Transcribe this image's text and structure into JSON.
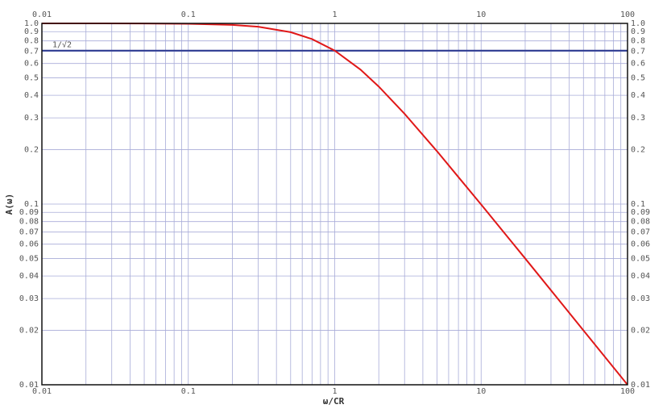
{
  "chart_data": {
    "type": "line",
    "xlabel": "ω/CR",
    "ylabel": "A(ω)",
    "xscale": "log",
    "yscale": "log",
    "grid": true,
    "x": [
      0.01,
      0.02,
      0.05,
      0.1,
      0.2,
      0.3,
      0.5,
      0.7,
      1,
      1.5,
      2,
      3,
      5,
      7,
      10,
      20,
      50,
      100
    ],
    "series": [
      {
        "name": "A(ω)",
        "color": "#e01818",
        "values": [
          1.0,
          1.0,
          0.999,
          0.995,
          0.981,
          0.958,
          0.894,
          0.819,
          0.707,
          0.555,
          0.447,
          0.316,
          0.196,
          0.141,
          0.0995,
          0.05,
          0.02,
          0.01
        ]
      }
    ],
    "hline": {
      "value": 0.7071,
      "label": "1/√2",
      "color": "#2b3990"
    },
    "xlim": [
      0.01,
      100
    ],
    "ylim": [
      0.01,
      1
    ],
    "xticks": [
      0.01,
      0.1,
      1,
      10,
      100
    ],
    "xgrid": [
      0.02,
      0.03,
      0.04,
      0.05,
      0.06,
      0.07,
      0.08,
      0.09,
      0.2,
      0.3,
      0.4,
      0.5,
      0.6,
      0.7,
      0.8,
      0.9,
      2,
      3,
      4,
      5,
      6,
      7,
      8,
      9,
      20,
      30,
      40,
      50,
      60,
      70,
      80,
      90
    ],
    "yticks": [
      0.01,
      0.02,
      0.03,
      0.04,
      0.05,
      0.06,
      0.07,
      0.08,
      0.09,
      0.1,
      0.2,
      0.3,
      0.4,
      0.5,
      0.6,
      0.7,
      0.8,
      0.9,
      {
        "value": 1,
        "label": "1.0"
      }
    ]
  }
}
